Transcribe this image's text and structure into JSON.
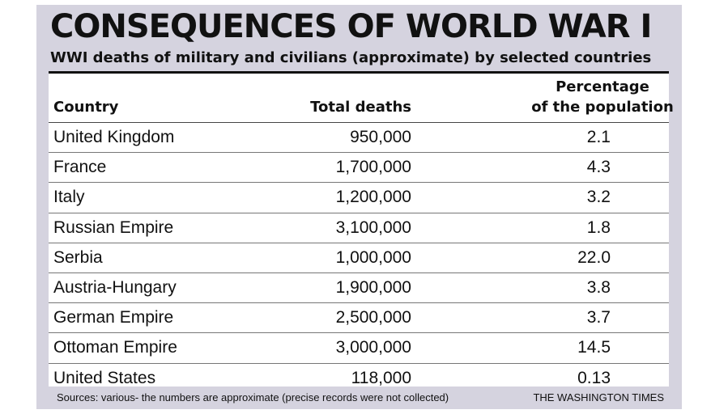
{
  "header": {
    "title": "CONSEQUENCES OF WORLD WAR I",
    "subtitle": "WWI deaths of military and civilians (approximate) by selected countries"
  },
  "table": {
    "col_country": "Country",
    "col_deaths": "Total deaths",
    "col_pct_line1": "Percentage",
    "col_pct_line2": "of the population"
  },
  "chart_data": {
    "type": "table",
    "title": "CONSEQUENCES OF WORLD WAR I",
    "subtitle": "WWI deaths of military and civilians (approximate) by selected countries",
    "columns": [
      "Country",
      "Total deaths",
      "Percentage of the population"
    ],
    "rows": [
      {
        "country": "United Kingdom",
        "deaths": "950,000",
        "pct": "2.1"
      },
      {
        "country": "France",
        "deaths": "1,700,000",
        "pct": "4.3"
      },
      {
        "country": "Italy",
        "deaths": "1,200,000",
        "pct": "3.2"
      },
      {
        "country": "Russian Empire",
        "deaths": "3,100,000",
        "pct": "1.8"
      },
      {
        "country": "Serbia",
        "deaths": "1,000,000",
        "pct": "22.0"
      },
      {
        "country": "Austria-Hungary",
        "deaths": "1,900,000",
        "pct": "3.8"
      },
      {
        "country": "German Empire",
        "deaths": "2,500,000",
        "pct": "3.7"
      },
      {
        "country": "Ottoman Empire",
        "deaths": "3,000,000",
        "pct": "14.5"
      },
      {
        "country": "United States",
        "deaths": "118,000",
        "pct": "0.13"
      }
    ]
  },
  "footer": {
    "source": "Sources: various- the numbers are approximate (precise records were not collected)",
    "credit": "THE WASHINGTON TIMES"
  },
  "colors": {
    "panel_background": "#d5d3df",
    "table_background": "#ffffff",
    "text": "#111111"
  }
}
